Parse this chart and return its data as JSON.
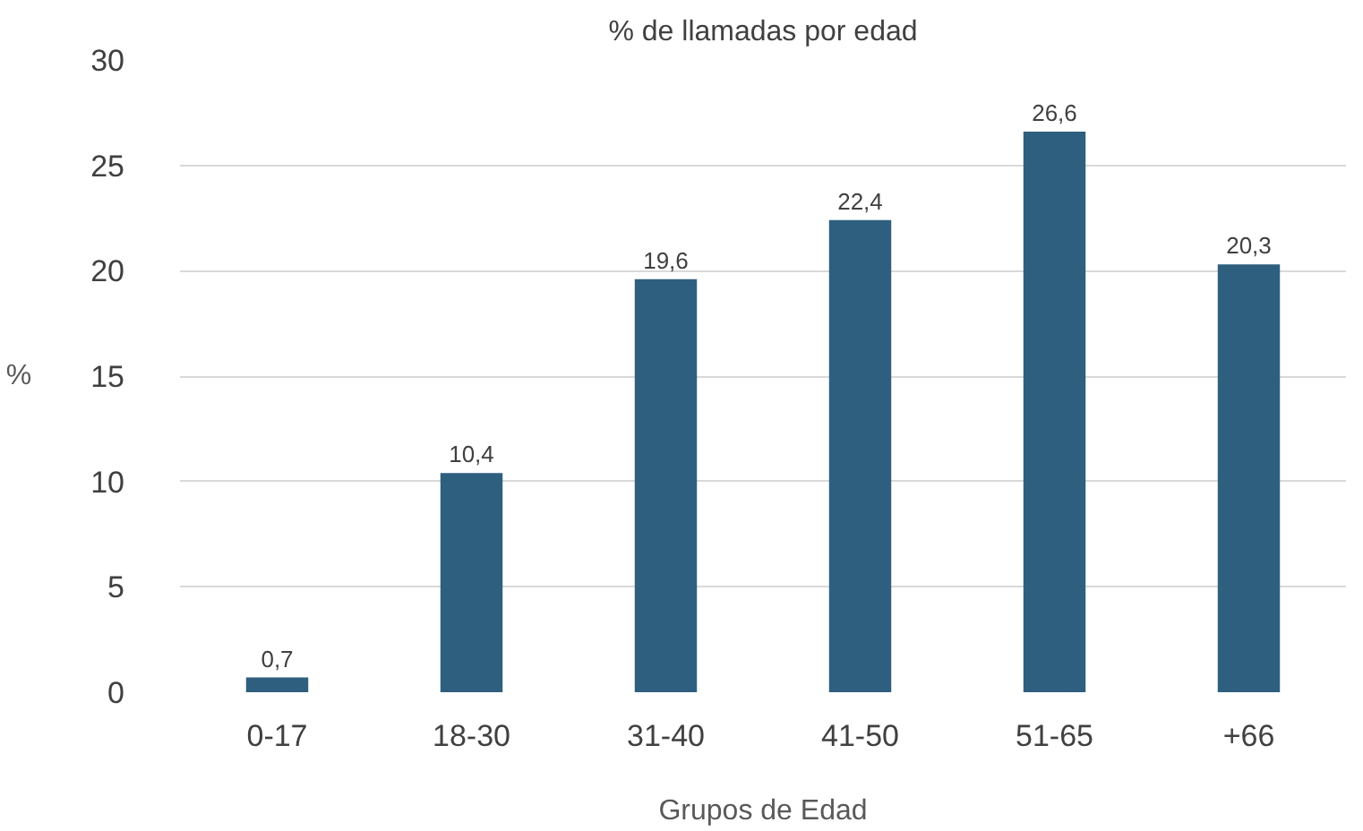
{
  "chart_data": {
    "type": "bar",
    "title": "% de llamadas por edad",
    "xlabel": "Grupos de Edad",
    "ylabel": "%",
    "categories": [
      "0-17",
      "18-30",
      "31-40",
      "41-50",
      "51-65",
      "+66"
    ],
    "values": [
      0.7,
      10.4,
      19.6,
      22.4,
      26.6,
      20.3
    ],
    "value_labels": [
      "0,7",
      "10,4",
      "19,6",
      "22,4",
      "26,6",
      "20,3"
    ],
    "color": "#2e5f7f",
    "ylim": [
      0,
      30
    ],
    "yticks": [
      0,
      5,
      10,
      15,
      20,
      25,
      30
    ],
    "grid": "y"
  }
}
